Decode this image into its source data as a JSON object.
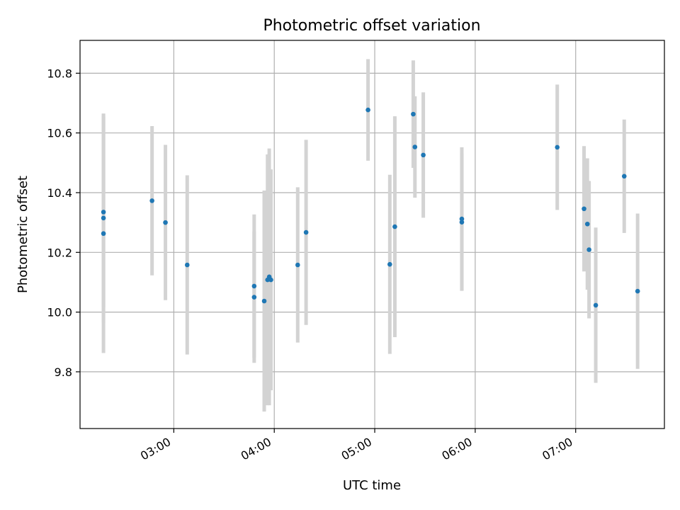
{
  "chart_data": {
    "type": "scatter",
    "title": "Photometric offset variation",
    "xlabel": "UTC time",
    "ylabel": "Photometric offset",
    "x_unit": "hour (UTC)",
    "xlim": [
      "02:04",
      "07:53"
    ],
    "ylim": [
      9.61,
      10.91
    ],
    "x_ticks": [
      "03:00",
      "04:00",
      "05:00",
      "06:00",
      "07:00"
    ],
    "y_ticks": [
      "9.8",
      "10.0",
      "10.2",
      "10.4",
      "10.6",
      "10.8"
    ],
    "grid": true,
    "colors": {
      "points": "#1f77b4",
      "errorbars": "#d3d3d3",
      "grid": "#b0b0b0",
      "axes": "#000000"
    },
    "points": [
      {
        "x": "02:18",
        "y": 10.335,
        "yerr": 0.32
      },
      {
        "x": "02:18",
        "y": 10.315,
        "yerr": 0.35
      },
      {
        "x": "02:18",
        "y": 10.263,
        "yerr": 0.4
      },
      {
        "x": "02:47",
        "y": 10.373,
        "yerr": 0.25
      },
      {
        "x": "02:55",
        "y": 10.3,
        "yerr": 0.26
      },
      {
        "x": "03:08",
        "y": 10.158,
        "yerr": 0.3
      },
      {
        "x": "03:48",
        "y": 10.087,
        "yerr": 0.24
      },
      {
        "x": "03:48",
        "y": 10.05,
        "yerr": 0.22
      },
      {
        "x": "03:54",
        "y": 10.037,
        "yerr": 0.37
      },
      {
        "x": "03:56",
        "y": 10.108,
        "yerr": 0.42
      },
      {
        "x": "03:57",
        "y": 10.118,
        "yerr": 0.43
      },
      {
        "x": "03:58",
        "y": 10.108,
        "yerr": 0.37
      },
      {
        "x": "04:14",
        "y": 10.158,
        "yerr": 0.26
      },
      {
        "x": "04:19",
        "y": 10.267,
        "yerr": 0.31
      },
      {
        "x": "04:56",
        "y": 10.677,
        "yerr": 0.17
      },
      {
        "x": "05:09",
        "y": 10.16,
        "yerr": 0.3
      },
      {
        "x": "05:12",
        "y": 10.286,
        "yerr": 0.37
      },
      {
        "x": "05:23",
        "y": 10.663,
        "yerr": 0.18
      },
      {
        "x": "05:24",
        "y": 10.553,
        "yerr": 0.17
      },
      {
        "x": "05:29",
        "y": 10.526,
        "yerr": 0.21
      },
      {
        "x": "05:52",
        "y": 10.312,
        "yerr": 0.24
      },
      {
        "x": "05:52",
        "y": 10.301,
        "yerr": 0.23
      },
      {
        "x": "06:49",
        "y": 10.552,
        "yerr": 0.21
      },
      {
        "x": "07:05",
        "y": 10.346,
        "yerr": 0.21
      },
      {
        "x": "07:07",
        "y": 10.295,
        "yerr": 0.22
      },
      {
        "x": "07:08",
        "y": 10.209,
        "yerr": 0.23
      },
      {
        "x": "07:12",
        "y": 10.023,
        "yerr": 0.26
      },
      {
        "x": "07:29",
        "y": 10.455,
        "yerr": 0.19
      },
      {
        "x": "07:37",
        "y": 10.07,
        "yerr": 0.26
      }
    ]
  }
}
